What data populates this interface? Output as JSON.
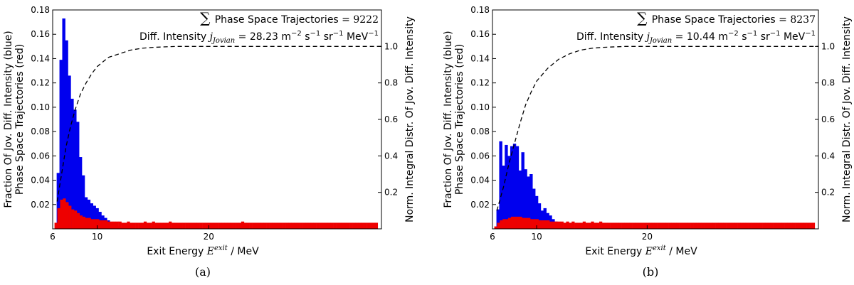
{
  "chart_data": [
    {
      "type": "bar",
      "panel_label": "(a)",
      "xlabel": "Exit Energy",
      "xlabel_symbol": "E",
      "xlabel_sup": "exit",
      "xlabel_unit": " / MeV",
      "ylabel_left": [
        "Fraction Of Jov. Diff. Intensity (blue)",
        "Phase Space Trajectories (red)"
      ],
      "ylabel_right": "Norm. Integral Distr. Of Jov. Diff. Intensity",
      "xlim": [
        6,
        35.5
      ],
      "ylim_left": [
        0,
        0.18
      ],
      "ylim_right": [
        0,
        1.2
      ],
      "xticks": [
        6,
        10,
        20
      ],
      "yticks_left": [
        0.02,
        0.04,
        0.06,
        0.08,
        0.1,
        0.12,
        0.14,
        0.16,
        0.18
      ],
      "yticks_left_labels": [
        "0.02",
        "0.04",
        "0.06",
        "0.08",
        "0.10",
        "0.12",
        "0.14",
        "0.16",
        "0.18"
      ],
      "yticks_right": [
        0.2,
        0.4,
        0.6,
        0.8,
        1.0
      ],
      "yticks_right_labels": [
        "0.2",
        "0.4",
        "0.6",
        "0.8",
        "1.0"
      ],
      "annotation": {
        "sum_symbol": "∑",
        "line1_label": "Phase Space Trajectories = ",
        "line1_value": "9222",
        "line2_prefix": "Diff. Intensity ",
        "line2_symbol": "j",
        "line2_sub": "Jovian",
        "line2_eq": " = 28.23 m",
        "line2_exp1": "−2",
        "line2_s": "s",
        "line2_exp2": "−1",
        "line2_sr": "sr",
        "line2_exp3": "−1",
        "line2_mev": "MeV",
        "line2_exp4": "−1"
      },
      "series": [
        {
          "name": "Fraction Of Jov. Diff. Intensity (blue)",
          "color": "#0000ee",
          "x": [
            6.5,
            6.75,
            7.0,
            7.25,
            7.5,
            7.75,
            8.0,
            8.25,
            8.5,
            8.75,
            9.0,
            9.25,
            9.5,
            9.75,
            10.0,
            10.25,
            10.5,
            10.75,
            11.0,
            11.25,
            11.5,
            11.75,
            12.0,
            12.25
          ],
          "values": [
            0.046,
            0.139,
            0.173,
            0.155,
            0.126,
            0.107,
            0.098,
            0.088,
            0.059,
            0.044,
            0.026,
            0.024,
            0.021,
            0.019,
            0.017,
            0.014,
            0.011,
            0.009,
            0.007,
            0.005,
            0.004,
            0.003,
            0.002,
            0.001
          ]
        },
        {
          "name": "Phase Space Trajectories (red)",
          "color": "#ee0000",
          "x": [
            6.3,
            6.55,
            6.8,
            7.05,
            7.3,
            7.55,
            7.8,
            8.05,
            8.3,
            8.55,
            8.8,
            9.05,
            9.3,
            9.55,
            9.8,
            10.05,
            10.3,
            10.55,
            10.8,
            11.05,
            11.3,
            11.55,
            11.8,
            12.05,
            12.3,
            12.55,
            12.8,
            13.05,
            13.3,
            13.55,
            13.8,
            14.05,
            14.3,
            14.55,
            14.8,
            15.05,
            15.3,
            15.55,
            15.8,
            16.05,
            16.3,
            16.55,
            16.8,
            17.05,
            17.3,
            17.55,
            17.8,
            18.05,
            18.3,
            18.55,
            18.8,
            19.05,
            19.3,
            19.55,
            19.8,
            20.05,
            20.3,
            20.55,
            20.8,
            21.05,
            21.3,
            21.55,
            21.8,
            22.05,
            22.3,
            22.55,
            22.8,
            23.05,
            23.3,
            23.55,
            23.8,
            24.05,
            24.3,
            24.55,
            24.8,
            25.05,
            25.3,
            25.55,
            25.8,
            26.05,
            26.3,
            26.55,
            26.8,
            27.05,
            27.3,
            27.55,
            27.8,
            28.05,
            28.3,
            28.55,
            28.8,
            29.05,
            29.3,
            29.55,
            29.8,
            30.05,
            30.3,
            30.55,
            30.8,
            31.05,
            31.3,
            31.55,
            31.8,
            32.05,
            32.3,
            32.55,
            32.8,
            33.05,
            33.3,
            33.55,
            33.8,
            34.05,
            34.3,
            34.55,
            34.8,
            35.05
          ],
          "values": [
            0.005,
            0.017,
            0.024,
            0.025,
            0.022,
            0.019,
            0.016,
            0.015,
            0.013,
            0.011,
            0.01,
            0.009,
            0.009,
            0.008,
            0.008,
            0.008,
            0.007,
            0.007,
            0.007,
            0.006,
            0.006,
            0.006,
            0.006,
            0.006,
            0.005,
            0.005,
            0.006,
            0.005,
            0.005,
            0.005,
            0.005,
            0.005,
            0.006,
            0.005,
            0.005,
            0.006,
            0.005,
            0.005,
            0.005,
            0.005,
            0.005,
            0.006,
            0.005,
            0.005,
            0.005,
            0.005,
            0.005,
            0.005,
            0.005,
            0.005,
            0.005,
            0.005,
            0.005,
            0.005,
            0.005,
            0.005,
            0.005,
            0.005,
            0.005,
            0.005,
            0.005,
            0.005,
            0.005,
            0.005,
            0.005,
            0.005,
            0.005,
            0.006,
            0.005,
            0.005,
            0.005,
            0.005,
            0.005,
            0.005,
            0.005,
            0.005,
            0.005,
            0.005,
            0.005,
            0.005,
            0.005,
            0.005,
            0.005,
            0.005,
            0.005,
            0.005,
            0.005,
            0.005,
            0.005,
            0.005,
            0.005,
            0.005,
            0.005,
            0.005,
            0.005,
            0.005,
            0.005,
            0.005,
            0.005,
            0.005,
            0.005,
            0.005,
            0.005,
            0.005,
            0.005,
            0.005,
            0.005,
            0.005,
            0.005,
            0.005,
            0.005,
            0.005,
            0.005,
            0.005,
            0.005,
            0.005
          ]
        },
        {
          "name": "Norm. Integral Distr. Of Jov. Diff. Intensity",
          "style": "dashed",
          "color": "#000000",
          "axis": "right",
          "x": [
            6.4,
            6.8,
            7.2,
            7.6,
            8.0,
            8.5,
            9.0,
            9.5,
            10.0,
            11.0,
            12.0,
            13.0,
            14.0,
            15.0,
            17.0,
            20.0,
            25.0,
            30.0,
            35.5
          ],
          "values": [
            0.15,
            0.3,
            0.45,
            0.56,
            0.65,
            0.74,
            0.8,
            0.85,
            0.89,
            0.94,
            0.96,
            0.98,
            0.99,
            0.995,
            1.0,
            1.0,
            1.0,
            1.0,
            1.0
          ]
        }
      ]
    },
    {
      "type": "bar",
      "panel_label": "(b)",
      "xlabel": "Exit Energy",
      "xlabel_symbol": "E",
      "xlabel_sup": "exit",
      "xlabel_unit": " / MeV",
      "ylabel_left": [
        "Fraction Of Jov. Diff. Intensity (blue)",
        "Phase Space Trajectories (red)"
      ],
      "ylabel_right": "Norm. Integral Distr. Of Jov. Diff. Intensity",
      "xlim": [
        6,
        35.5
      ],
      "ylim_left": [
        0,
        0.18
      ],
      "ylim_right": [
        0,
        1.2
      ],
      "xticks": [
        6,
        10,
        20
      ],
      "yticks_left": [
        0.02,
        0.04,
        0.06,
        0.08,
        0.1,
        0.12,
        0.14,
        0.16,
        0.18
      ],
      "yticks_left_labels": [
        "0.02",
        "0.04",
        "0.06",
        "0.08",
        "0.10",
        "0.12",
        "0.14",
        "0.16",
        "0.18"
      ],
      "yticks_right": [
        0.2,
        0.4,
        0.6,
        0.8,
        1.0
      ],
      "yticks_right_labels": [
        "0.2",
        "0.4",
        "0.6",
        "0.8",
        "1.0"
      ],
      "annotation": {
        "sum_symbol": "∑",
        "line1_label": "Phase Space Trajectories = ",
        "line1_value": "8237",
        "line2_prefix": "Diff. Intensity ",
        "line2_symbol": "j",
        "line2_sub": "Jovian",
        "line2_eq": " = 10.44 m",
        "line2_exp1": "−2",
        "line2_s": "s",
        "line2_exp2": "−1",
        "line2_sr": "sr",
        "line2_exp3": "−1",
        "line2_mev": "MeV",
        "line2_exp4": "−1"
      },
      "series": [
        {
          "name": "Fraction Of Jov. Diff. Intensity (blue)",
          "color": "#0000ee",
          "x": [
            6.5,
            6.75,
            7.0,
            7.25,
            7.5,
            7.75,
            8.0,
            8.25,
            8.5,
            8.75,
            9.0,
            9.25,
            9.5,
            9.75,
            10.0,
            10.25,
            10.5,
            10.75,
            11.0,
            11.25,
            11.5,
            11.75,
            12.0,
            12.25,
            12.5
          ],
          "values": [
            0.016,
            0.072,
            0.052,
            0.069,
            0.06,
            0.068,
            0.07,
            0.068,
            0.048,
            0.063,
            0.049,
            0.043,
            0.045,
            0.033,
            0.027,
            0.021,
            0.015,
            0.017,
            0.013,
            0.011,
            0.008,
            0.006,
            0.004,
            0.002,
            0.001
          ]
        },
        {
          "name": "Phase Space Trajectories (red)",
          "color": "#ee0000",
          "x": [
            6.3,
            6.55,
            6.8,
            7.05,
            7.3,
            7.55,
            7.8,
            8.05,
            8.3,
            8.55,
            8.8,
            9.05,
            9.3,
            9.55,
            9.8,
            10.05,
            10.3,
            10.55,
            10.8,
            11.05,
            11.3,
            11.55,
            11.8,
            12.05,
            12.3,
            12.55,
            12.8,
            13.05,
            13.3,
            13.55,
            13.8,
            14.05,
            14.3,
            14.55,
            14.8,
            15.05,
            15.3,
            15.55,
            15.8,
            16.05,
            16.3,
            16.55,
            16.8,
            17.05,
            17.3,
            17.55,
            17.8,
            18.05,
            18.3,
            18.55,
            18.8,
            19.05,
            19.3,
            19.55,
            19.8,
            20.05,
            20.3,
            20.55,
            20.8,
            21.05,
            21.3,
            21.55,
            21.8,
            22.05,
            22.3,
            22.55,
            22.8,
            23.05,
            23.3,
            23.55,
            23.8,
            24.05,
            24.3,
            24.55,
            24.8,
            25.05,
            25.3,
            25.55,
            25.8,
            26.05,
            26.3,
            26.55,
            26.8,
            27.05,
            27.3,
            27.55,
            27.8,
            28.05,
            28.3,
            28.55,
            28.8,
            29.05,
            29.3,
            29.55,
            29.8,
            30.05,
            30.3,
            30.55,
            30.8,
            31.05,
            31.3,
            31.55,
            31.8,
            32.05,
            32.3,
            32.55,
            32.8,
            33.05,
            33.3,
            33.55,
            33.8,
            34.05,
            34.3,
            34.55,
            34.8,
            35.05
          ],
          "values": [
            0.002,
            0.005,
            0.007,
            0.008,
            0.008,
            0.009,
            0.01,
            0.01,
            0.01,
            0.01,
            0.009,
            0.009,
            0.009,
            0.008,
            0.008,
            0.008,
            0.007,
            0.007,
            0.007,
            0.007,
            0.006,
            0.006,
            0.006,
            0.006,
            0.006,
            0.005,
            0.006,
            0.005,
            0.006,
            0.005,
            0.005,
            0.005,
            0.006,
            0.005,
            0.005,
            0.006,
            0.005,
            0.005,
            0.006,
            0.005,
            0.005,
            0.005,
            0.005,
            0.005,
            0.005,
            0.005,
            0.005,
            0.005,
            0.005,
            0.005,
            0.005,
            0.005,
            0.005,
            0.005,
            0.005,
            0.005,
            0.005,
            0.005,
            0.005,
            0.005,
            0.005,
            0.005,
            0.005,
            0.005,
            0.005,
            0.005,
            0.005,
            0.005,
            0.005,
            0.005,
            0.005,
            0.005,
            0.005,
            0.005,
            0.005,
            0.005,
            0.005,
            0.005,
            0.005,
            0.005,
            0.005,
            0.005,
            0.005,
            0.005,
            0.005,
            0.005,
            0.005,
            0.005,
            0.005,
            0.005,
            0.005,
            0.005,
            0.005,
            0.005,
            0.005,
            0.005,
            0.005,
            0.005,
            0.005,
            0.005,
            0.005,
            0.005,
            0.005,
            0.005,
            0.005,
            0.005,
            0.005,
            0.005,
            0.005,
            0.005,
            0.005,
            0.005,
            0.005,
            0.005,
            0.005,
            0.005
          ]
        },
        {
          "name": "Norm. Integral Distr. Of Jov. Diff. Intensity",
          "style": "dashed",
          "color": "#000000",
          "axis": "right",
          "x": [
            6.4,
            7.0,
            7.5,
            8.0,
            8.5,
            9.0,
            9.5,
            10.0,
            11.0,
            12.0,
            13.0,
            14.0,
            15.0,
            16.0,
            18.0,
            20.0,
            25.0,
            30.0,
            35.5
          ],
          "values": [
            0.1,
            0.23,
            0.36,
            0.47,
            0.58,
            0.68,
            0.75,
            0.81,
            0.88,
            0.93,
            0.96,
            0.98,
            0.99,
            0.995,
            1.0,
            1.0,
            1.0,
            1.0,
            1.0
          ]
        }
      ]
    }
  ]
}
